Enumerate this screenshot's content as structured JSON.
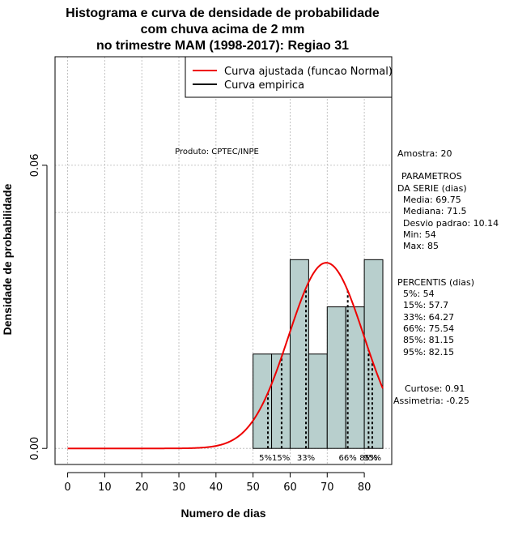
{
  "chart_data": {
    "type": "histogram",
    "title_lines": [
      "Histograma e curva de densidade de probabilidade",
      "com chuva acima de 2 mm",
      "no trimestre MAM (1998-2017): Regiao 31"
    ],
    "xlabel": "Numero de dias",
    "ylabel": "Densidade de probabilidade",
    "xlim": [
      -3.4,
      87.4
    ],
    "ylim": [
      -0.0034,
      0.083
    ],
    "x_ticks": [
      0,
      10,
      20,
      30,
      40,
      50,
      60,
      70,
      80
    ],
    "y_ticks": [
      0.0,
      0.06
    ],
    "y_tick_labels": [
      "0.00",
      "0.06"
    ],
    "grid": true,
    "bin_width": 5,
    "bars": [
      {
        "x0": 50,
        "x1": 55,
        "density": 0.02
      },
      {
        "x0": 55,
        "x1": 60,
        "density": 0.02
      },
      {
        "x0": 60,
        "x1": 65,
        "density": 0.04
      },
      {
        "x0": 65,
        "x1": 70,
        "density": 0.02
      },
      {
        "x0": 70,
        "x1": 75,
        "density": 0.03
      },
      {
        "x0": 75,
        "x1": 80,
        "density": 0.03
      },
      {
        "x0": 80,
        "x1": 85,
        "density": 0.04
      }
    ],
    "bar_color": "#b8cfcd",
    "normal_curve": {
      "mean": 69.75,
      "sd": 10.14,
      "x_from": 0,
      "x_to": 85,
      "color": "#ee0000"
    },
    "percentile_lines": [
      {
        "label": "5%",
        "value": 54
      },
      {
        "label": "15%",
        "value": 57.7
      },
      {
        "label": "33%",
        "value": 64.27
      },
      {
        "label": "66%",
        "value": 75.54
      },
      {
        "label": "85%",
        "value": 81.15
      },
      {
        "label": "95%",
        "value": 82.15
      }
    ],
    "percentile_labels": [
      {
        "text": "5%15%",
        "x": 55.8
      },
      {
        "text": "33%",
        "x": 64.27
      },
      {
        "text": "66%",
        "x": 75.54
      },
      {
        "text": "85%",
        "x": 81.15
      },
      {
        "text": "95%",
        "x": 82.15
      }
    ],
    "legend": {
      "position": "top-right",
      "entries": [
        {
          "label": "Curva ajustada (funcao Normal)",
          "color": "#ee0000"
        },
        {
          "label": "Curva empirica",
          "color": "#000000"
        }
      ]
    },
    "annotation": "Produto: CPTEC/INPE"
  },
  "stats": {
    "sample": "Amostra: 20",
    "params_lines": [
      "PARAMETROS",
      "DA SERIE (dias)",
      "Media: 69.75",
      "Mediana: 71.5",
      "Desvio padrao: 10.14",
      "Min: 54",
      "Max: 85"
    ],
    "percentis_lines": [
      "PERCENTIS (dias)",
      "5%: 54",
      "15%: 57.7",
      "33%: 64.27",
      "66%: 75.54",
      "85%: 81.15",
      "95%: 82.15"
    ],
    "shape_lines": [
      "Curtose: 0.91",
      "Assimetria: -0.25"
    ]
  }
}
